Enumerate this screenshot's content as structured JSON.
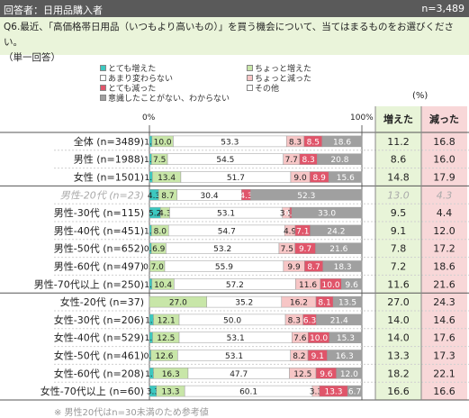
{
  "header": {
    "respondent_label": "回答者：日用品購入者",
    "n_total": "n=3,489"
  },
  "question": {
    "line1": "Q6.最近、「高価格帯日用品（いつもより高いもの）」を買う機会について、当てはまるものをお選びください。",
    "line2": "（単一回答）"
  },
  "legend_items": [
    {
      "label": "とても増えた",
      "color": "#3cc8c0"
    },
    {
      "label": "ちょっと増えた",
      "color": "#c8e6a8"
    },
    {
      "label": "あまり変わらない",
      "color": "#ffffff"
    },
    {
      "label": "ちょっと減った",
      "color": "#f7c6c6"
    },
    {
      "label": "とても減った",
      "color": "#e0556a"
    },
    {
      "label": "その他",
      "color": "#ffffff"
    },
    {
      "label": "意識したことがない、わからない",
      "color": "#a0a0a0"
    }
  ],
  "axis": {
    "min_label": "0%",
    "max_label": "100%"
  },
  "table": {
    "unit": "(%)",
    "increased_header": "増えた",
    "decreased_header": "減った",
    "increased_color": "#e8f4d8",
    "decreased_color": "#f8d7d8"
  },
  "footnote": "※ 男性20代はn=30未満のため参考値",
  "chart_data": {
    "type": "bar",
    "orientation": "horizontal-stacked-100",
    "categories": [
      "全体 (n=3489)",
      "男性 (n=1988)",
      "女性 (n=1501)",
      "男性-20代 (n=23)",
      "男性-30代 (n=115)",
      "男性-40代 (n=451)",
      "男性-50代 (n=652)",
      "男性-60代 (n=497)",
      "男性-70代以上 (n=250)",
      "女性-20代 (n=37)",
      "女性-30代 (n=206)",
      "女性-40代 (n=529)",
      "女性-50代 (n=461)",
      "女性-60代 (n=208)",
      "女性-70代以上 (n=60)"
    ],
    "muted_categories": [
      "男性-20代 (n=23)"
    ],
    "series": [
      {
        "name": "とても増えた",
        "color": "#3cc8c0",
        "values": [
          1.2,
          1.0,
          1.4,
          4.3,
          5.2,
          1.0,
          0.9,
          0.2,
          1.2,
          0.0,
          1.9,
          1.5,
          0.7,
          1.9,
          3.3
        ]
      },
      {
        "name": "ちょっと増えた",
        "color": "#c8e6a8",
        "values": [
          10.0,
          7.5,
          13.4,
          8.7,
          4.3,
          8.0,
          6.9,
          7.0,
          10.4,
          27.0,
          12.1,
          12.5,
          12.6,
          16.3,
          13.3
        ]
      },
      {
        "name": "あまり変わらない",
        "color": "#ffffff",
        "values": [
          53.3,
          54.5,
          51.7,
          30.4,
          53.1,
          54.7,
          53.2,
          55.9,
          57.2,
          35.2,
          50.0,
          53.1,
          53.1,
          47.7,
          60.1
        ]
      },
      {
        "name": "ちょっと減った",
        "color": "#f7c6c6",
        "values": [
          8.3,
          7.7,
          9.0,
          0.0,
          3.5,
          4.9,
          7.5,
          9.9,
          11.6,
          16.2,
          8.3,
          7.6,
          8.2,
          12.5,
          3.3
        ]
      },
      {
        "name": "とても減った",
        "color": "#e0556a",
        "values": [
          8.5,
          8.3,
          8.9,
          4.3,
          0.9,
          7.1,
          9.7,
          8.7,
          10.0,
          8.1,
          6.3,
          10.0,
          9.1,
          9.6,
          13.3
        ]
      },
      {
        "name": "その他",
        "color": "#ffffff",
        "values": [
          0.1,
          0.2,
          0.1,
          0.0,
          0.0,
          0.1,
          0.1,
          0.1,
          0.0,
          0.0,
          0.0,
          0.0,
          0.0,
          0.0,
          0.0
        ]
      },
      {
        "name": "意識したことがない、わからない",
        "color": "#a0a0a0",
        "values": [
          18.6,
          20.8,
          15.6,
          52.3,
          33.0,
          24.2,
          21.6,
          18.3,
          9.6,
          13.5,
          21.4,
          15.3,
          16.3,
          12.0,
          6.7
        ]
      }
    ],
    "increased": [
      "11.2",
      "8.6",
      "14.8",
      "13.0",
      "9.5",
      "9.1",
      "7.8",
      "7.2",
      "11.6",
      "27.0",
      "14.0",
      "14.0",
      "13.3",
      "18.2",
      "16.6"
    ],
    "decreased": [
      "16.8",
      "16.0",
      "17.9",
      "4.3",
      "4.4",
      "12.0",
      "17.2",
      "18.6",
      "21.6",
      "24.3",
      "14.6",
      "17.6",
      "17.3",
      "22.1",
      "16.6"
    ],
    "xlim": [
      0,
      100
    ]
  }
}
